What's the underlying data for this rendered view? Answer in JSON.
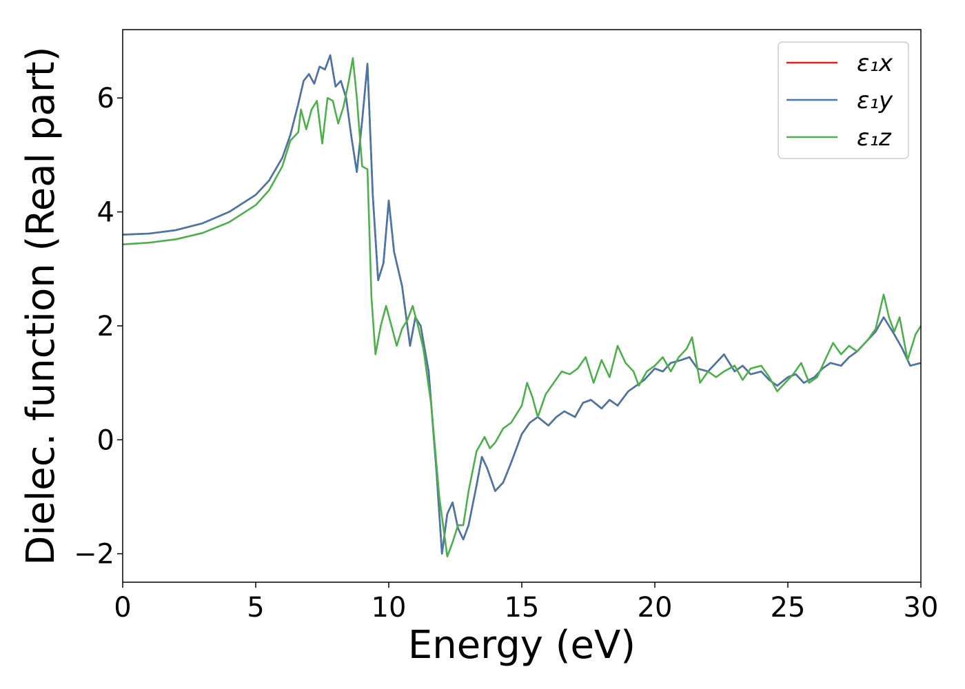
{
  "chart_data": {
    "type": "line",
    "title": "",
    "xlabel": "Energy (eV)",
    "ylabel": "Dielec. function (Real part)",
    "xlim": [
      0,
      30
    ],
    "ylim": [
      -2.5,
      7.2
    ],
    "xticks": [
      0,
      5,
      10,
      15,
      20,
      25,
      30
    ],
    "xtick_labels": [
      "0",
      "5",
      "10",
      "15",
      "20",
      "25",
      "30"
    ],
    "yticks": [
      -2,
      0,
      2,
      4,
      6
    ],
    "ytick_labels": [
      "−2",
      "0",
      "2",
      "4",
      "6"
    ],
    "grid": false,
    "legend_position": "top-right",
    "series": [
      {
        "name": "ε₁x",
        "color": "#e41a1c",
        "points": [
          [
            0,
            3.6
          ],
          [
            1,
            3.62
          ],
          [
            2,
            3.68
          ],
          [
            3,
            3.8
          ],
          [
            4,
            4.0
          ],
          [
            5,
            4.3
          ],
          [
            5.5,
            4.55
          ],
          [
            6,
            4.95
          ],
          [
            6.3,
            5.35
          ],
          [
            6.6,
            5.9
          ],
          [
            6.8,
            6.3
          ],
          [
            7.0,
            6.42
          ],
          [
            7.2,
            6.25
          ],
          [
            7.4,
            6.55
          ],
          [
            7.6,
            6.5
          ],
          [
            7.8,
            6.75
          ],
          [
            8.0,
            6.2
          ],
          [
            8.2,
            6.3
          ],
          [
            8.4,
            6.0
          ],
          [
            8.6,
            5.3
          ],
          [
            8.8,
            4.7
          ],
          [
            9.0,
            5.6
          ],
          [
            9.2,
            6.6
          ],
          [
            9.4,
            4.3
          ],
          [
            9.6,
            2.8
          ],
          [
            9.8,
            3.1
          ],
          [
            10.0,
            4.2
          ],
          [
            10.2,
            3.3
          ],
          [
            10.5,
            2.7
          ],
          [
            10.8,
            1.65
          ],
          [
            11.0,
            2.15
          ],
          [
            11.2,
            2.0
          ],
          [
            11.5,
            1.2
          ],
          [
            11.8,
            -0.6
          ],
          [
            12.0,
            -2.0
          ],
          [
            12.2,
            -1.3
          ],
          [
            12.4,
            -1.1
          ],
          [
            12.6,
            -1.55
          ],
          [
            12.8,
            -1.75
          ],
          [
            13.0,
            -1.5
          ],
          [
            13.3,
            -0.8
          ],
          [
            13.5,
            -0.3
          ],
          [
            13.7,
            -0.5
          ],
          [
            14.0,
            -0.9
          ],
          [
            14.3,
            -0.75
          ],
          [
            14.6,
            -0.4
          ],
          [
            15.0,
            0.1
          ],
          [
            15.3,
            0.3
          ],
          [
            15.6,
            0.4
          ],
          [
            16.0,
            0.25
          ],
          [
            16.3,
            0.4
          ],
          [
            16.6,
            0.5
          ],
          [
            17.0,
            0.4
          ],
          [
            17.3,
            0.65
          ],
          [
            17.6,
            0.7
          ],
          [
            18.0,
            0.55
          ],
          [
            18.3,
            0.7
          ],
          [
            18.6,
            0.6
          ],
          [
            19.0,
            0.85
          ],
          [
            19.3,
            0.95
          ],
          [
            19.6,
            1.05
          ],
          [
            20.0,
            1.25
          ],
          [
            20.3,
            1.2
          ],
          [
            20.6,
            1.35
          ],
          [
            21.0,
            1.4
          ],
          [
            21.3,
            1.45
          ],
          [
            21.6,
            1.25
          ],
          [
            22.0,
            1.2
          ],
          [
            22.3,
            1.35
          ],
          [
            22.6,
            1.5
          ],
          [
            23.0,
            1.2
          ],
          [
            23.3,
            1.3
          ],
          [
            23.6,
            1.15
          ],
          [
            24.0,
            1.2
          ],
          [
            24.3,
            1.05
          ],
          [
            24.6,
            0.95
          ],
          [
            25.0,
            1.1
          ],
          [
            25.3,
            1.15
          ],
          [
            25.6,
            1.0
          ],
          [
            26.0,
            1.1
          ],
          [
            26.3,
            1.25
          ],
          [
            26.6,
            1.35
          ],
          [
            27.0,
            1.3
          ],
          [
            27.3,
            1.45
          ],
          [
            27.6,
            1.55
          ],
          [
            28.0,
            1.75
          ],
          [
            28.3,
            1.9
          ],
          [
            28.6,
            2.15
          ],
          [
            29.0,
            1.85
          ],
          [
            29.3,
            1.6
          ],
          [
            29.6,
            1.3
          ],
          [
            30.0,
            1.35
          ]
        ]
      },
      {
        "name": "ε₁y",
        "color": "#4677a9",
        "points": [
          [
            0,
            3.6
          ],
          [
            1,
            3.62
          ],
          [
            2,
            3.68
          ],
          [
            3,
            3.8
          ],
          [
            4,
            4.0
          ],
          [
            5,
            4.3
          ],
          [
            5.5,
            4.55
          ],
          [
            6,
            4.95
          ],
          [
            6.3,
            5.35
          ],
          [
            6.6,
            5.9
          ],
          [
            6.8,
            6.3
          ],
          [
            7.0,
            6.42
          ],
          [
            7.2,
            6.25
          ],
          [
            7.4,
            6.55
          ],
          [
            7.6,
            6.5
          ],
          [
            7.8,
            6.75
          ],
          [
            8.0,
            6.2
          ],
          [
            8.2,
            6.3
          ],
          [
            8.4,
            6.0
          ],
          [
            8.6,
            5.3
          ],
          [
            8.8,
            4.7
          ],
          [
            9.0,
            5.6
          ],
          [
            9.2,
            6.6
          ],
          [
            9.4,
            4.3
          ],
          [
            9.6,
            2.8
          ],
          [
            9.8,
            3.1
          ],
          [
            10.0,
            4.2
          ],
          [
            10.2,
            3.3
          ],
          [
            10.5,
            2.7
          ],
          [
            10.8,
            1.65
          ],
          [
            11.0,
            2.15
          ],
          [
            11.2,
            2.0
          ],
          [
            11.5,
            1.2
          ],
          [
            11.8,
            -0.6
          ],
          [
            12.0,
            -2.0
          ],
          [
            12.2,
            -1.3
          ],
          [
            12.4,
            -1.1
          ],
          [
            12.6,
            -1.55
          ],
          [
            12.8,
            -1.75
          ],
          [
            13.0,
            -1.5
          ],
          [
            13.3,
            -0.8
          ],
          [
            13.5,
            -0.3
          ],
          [
            13.7,
            -0.5
          ],
          [
            14.0,
            -0.9
          ],
          [
            14.3,
            -0.75
          ],
          [
            14.6,
            -0.4
          ],
          [
            15.0,
            0.1
          ],
          [
            15.3,
            0.3
          ],
          [
            15.6,
            0.4
          ],
          [
            16.0,
            0.25
          ],
          [
            16.3,
            0.4
          ],
          [
            16.6,
            0.5
          ],
          [
            17.0,
            0.4
          ],
          [
            17.3,
            0.65
          ],
          [
            17.6,
            0.7
          ],
          [
            18.0,
            0.55
          ],
          [
            18.3,
            0.7
          ],
          [
            18.6,
            0.6
          ],
          [
            19.0,
            0.85
          ],
          [
            19.3,
            0.95
          ],
          [
            19.6,
            1.05
          ],
          [
            20.0,
            1.25
          ],
          [
            20.3,
            1.2
          ],
          [
            20.6,
            1.35
          ],
          [
            21.0,
            1.4
          ],
          [
            21.3,
            1.45
          ],
          [
            21.6,
            1.25
          ],
          [
            22.0,
            1.2
          ],
          [
            22.3,
            1.35
          ],
          [
            22.6,
            1.5
          ],
          [
            23.0,
            1.2
          ],
          [
            23.3,
            1.3
          ],
          [
            23.6,
            1.15
          ],
          [
            24.0,
            1.2
          ],
          [
            24.3,
            1.05
          ],
          [
            24.6,
            0.95
          ],
          [
            25.0,
            1.1
          ],
          [
            25.3,
            1.15
          ],
          [
            25.6,
            1.0
          ],
          [
            26.0,
            1.1
          ],
          [
            26.3,
            1.25
          ],
          [
            26.6,
            1.35
          ],
          [
            27.0,
            1.3
          ],
          [
            27.3,
            1.45
          ],
          [
            27.6,
            1.55
          ],
          [
            28.0,
            1.75
          ],
          [
            28.3,
            1.9
          ],
          [
            28.6,
            2.15
          ],
          [
            29.0,
            1.85
          ],
          [
            29.3,
            1.6
          ],
          [
            29.6,
            1.3
          ],
          [
            30.0,
            1.35
          ]
        ]
      },
      {
        "name": "ε₁z",
        "color": "#4daf4a",
        "points": [
          [
            0,
            3.43
          ],
          [
            1,
            3.46
          ],
          [
            2,
            3.52
          ],
          [
            3,
            3.63
          ],
          [
            4,
            3.82
          ],
          [
            5,
            4.12
          ],
          [
            5.5,
            4.38
          ],
          [
            6,
            4.8
          ],
          [
            6.3,
            5.25
          ],
          [
            6.6,
            5.4
          ],
          [
            6.7,
            5.8
          ],
          [
            6.9,
            5.45
          ],
          [
            7.1,
            5.8
          ],
          [
            7.3,
            5.95
          ],
          [
            7.5,
            5.2
          ],
          [
            7.7,
            6.0
          ],
          [
            7.9,
            5.95
          ],
          [
            8.1,
            5.55
          ],
          [
            8.3,
            5.85
          ],
          [
            8.5,
            6.3
          ],
          [
            8.65,
            6.7
          ],
          [
            8.8,
            6.0
          ],
          [
            9.0,
            4.8
          ],
          [
            9.2,
            4.75
          ],
          [
            9.35,
            2.5
          ],
          [
            9.5,
            1.5
          ],
          [
            9.7,
            2.0
          ],
          [
            9.9,
            2.35
          ],
          [
            10.1,
            2.0
          ],
          [
            10.3,
            1.65
          ],
          [
            10.5,
            1.95
          ],
          [
            10.7,
            2.1
          ],
          [
            10.9,
            2.35
          ],
          [
            11.1,
            2.0
          ],
          [
            11.3,
            1.6
          ],
          [
            11.6,
            0.6
          ],
          [
            11.9,
            -1.0
          ],
          [
            12.2,
            -2.05
          ],
          [
            12.4,
            -1.8
          ],
          [
            12.6,
            -1.5
          ],
          [
            12.8,
            -1.5
          ],
          [
            13.0,
            -0.9
          ],
          [
            13.3,
            -0.2
          ],
          [
            13.6,
            0.05
          ],
          [
            13.8,
            -0.15
          ],
          [
            14.0,
            -0.05
          ],
          [
            14.3,
            0.2
          ],
          [
            14.6,
            0.3
          ],
          [
            14.8,
            0.45
          ],
          [
            15.0,
            0.6
          ],
          [
            15.2,
            1.0
          ],
          [
            15.4,
            0.75
          ],
          [
            15.6,
            0.4
          ],
          [
            15.9,
            0.8
          ],
          [
            16.2,
            1.0
          ],
          [
            16.5,
            1.2
          ],
          [
            16.8,
            1.15
          ],
          [
            17.1,
            1.25
          ],
          [
            17.4,
            1.45
          ],
          [
            17.7,
            1.0
          ],
          [
            18.0,
            1.4
          ],
          [
            18.3,
            1.1
          ],
          [
            18.6,
            1.65
          ],
          [
            18.9,
            1.35
          ],
          [
            19.2,
            1.2
          ],
          [
            19.4,
            0.95
          ],
          [
            19.7,
            1.2
          ],
          [
            20.0,
            1.3
          ],
          [
            20.3,
            1.45
          ],
          [
            20.6,
            1.2
          ],
          [
            20.9,
            1.45
          ],
          [
            21.2,
            1.6
          ],
          [
            21.4,
            1.8
          ],
          [
            21.7,
            1.0
          ],
          [
            22.0,
            1.2
          ],
          [
            22.3,
            1.1
          ],
          [
            22.6,
            1.2
          ],
          [
            23.0,
            1.3
          ],
          [
            23.3,
            1.05
          ],
          [
            23.6,
            1.25
          ],
          [
            24.0,
            1.3
          ],
          [
            24.3,
            1.1
          ],
          [
            24.6,
            0.85
          ],
          [
            24.9,
            1.0
          ],
          [
            25.2,
            1.15
          ],
          [
            25.5,
            1.35
          ],
          [
            25.8,
            1.0
          ],
          [
            26.1,
            1.1
          ],
          [
            26.4,
            1.4
          ],
          [
            26.7,
            1.7
          ],
          [
            27.0,
            1.5
          ],
          [
            27.3,
            1.65
          ],
          [
            27.6,
            1.55
          ],
          [
            28.0,
            1.75
          ],
          [
            28.3,
            1.95
          ],
          [
            28.6,
            2.55
          ],
          [
            28.8,
            2.15
          ],
          [
            29.0,
            1.9
          ],
          [
            29.2,
            2.15
          ],
          [
            29.5,
            1.4
          ],
          [
            29.8,
            1.85
          ],
          [
            30.0,
            2.0
          ]
        ]
      }
    ]
  }
}
